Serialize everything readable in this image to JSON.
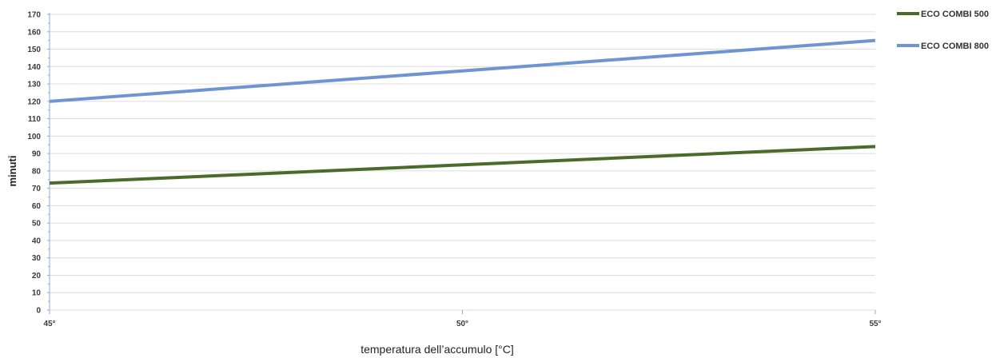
{
  "chart_data": {
    "type": "line",
    "title": "",
    "xlabel": "temperatura dell’accumulo [°C]",
    "ylabel": "minuti",
    "categories": [
      "45°",
      "50°",
      "55°"
    ],
    "x": [
      45,
      50,
      55
    ],
    "ylim": [
      0,
      170
    ],
    "yticks": [
      0,
      10,
      20,
      30,
      40,
      50,
      60,
      70,
      80,
      90,
      100,
      110,
      120,
      130,
      140,
      150,
      160,
      170
    ],
    "grid": true,
    "legend_position": "top-right",
    "series": [
      {
        "name": "ECO COMBI 500",
        "color": "#4a6b2c",
        "values": [
          73,
          83.5,
          94
        ]
      },
      {
        "name": "ECO COMBI 800",
        "color": "#6f95d1",
        "values": [
          120,
          137.5,
          155
        ]
      }
    ]
  },
  "colors": {
    "grid": "#dcdcdc",
    "axis": "#8fa9d6"
  }
}
